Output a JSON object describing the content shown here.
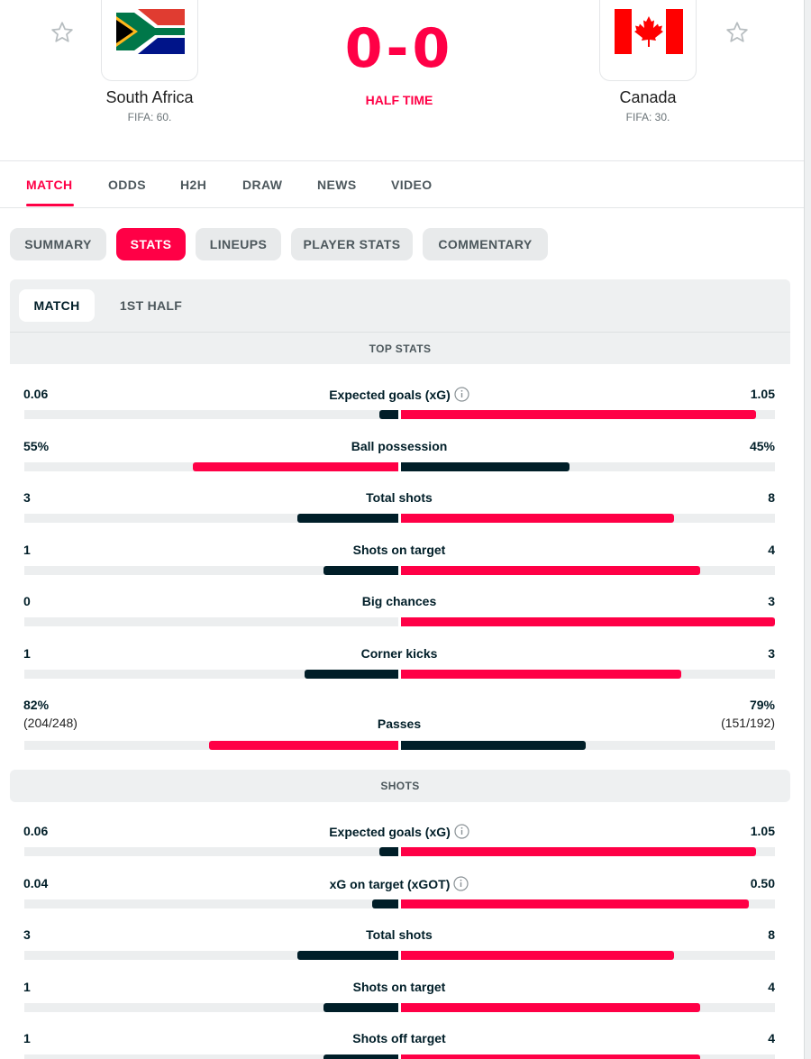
{
  "header": {
    "home": {
      "name": "South Africa",
      "rank": "FIFA: 60."
    },
    "away": {
      "name": "Canada",
      "rank": "FIFA: 30."
    },
    "score": "0-0",
    "status": "HALF TIME"
  },
  "main_tabs": [
    "MATCH",
    "ODDS",
    "H2H",
    "DRAW",
    "NEWS",
    "VIDEO"
  ],
  "sub_tabs": [
    "SUMMARY",
    "STATS",
    "LINEUPS",
    "PLAYER STATS",
    "COMMENTARY"
  ],
  "periods": [
    "MATCH",
    "1ST HALF"
  ],
  "sections": {
    "top_stats": "TOP STATS",
    "shots": "SHOTS"
  },
  "colors": {
    "accent": "#ff0046",
    "dark": "#001e28",
    "track": "#eceeef"
  },
  "top_stats": [
    {
      "label": "Expected goals (xG)",
      "home": "0.06",
      "away": "1.05",
      "home_share": 0.05,
      "away_share": 0.95,
      "info": true
    },
    {
      "label": "Ball possession",
      "home": "55%",
      "away": "45%",
      "home_share": 0.55,
      "away_share": 0.45
    },
    {
      "label": "Total shots",
      "home": "3",
      "away": "8",
      "home_share": 0.27,
      "away_share": 0.73
    },
    {
      "label": "Shots on target",
      "home": "1",
      "away": "4",
      "home_share": 0.2,
      "away_share": 0.8
    },
    {
      "label": "Big chances",
      "home": "0",
      "away": "3",
      "home_share": 0.0,
      "away_share": 1.0
    },
    {
      "label": "Corner kicks",
      "home": "1",
      "away": "3",
      "home_share": 0.25,
      "away_share": 0.75
    },
    {
      "label": "Passes",
      "home": "82%",
      "away": "79%",
      "home_sub": "(204/248)",
      "away_sub": "(151/192)",
      "home_share": 0.5,
      "away_share": 0.5
    }
  ],
  "shots": [
    {
      "label": "Expected goals (xG)",
      "home": "0.06",
      "away": "1.05",
      "home_share": 0.05,
      "away_share": 0.95,
      "info": true
    },
    {
      "label": "xG on target (xGOT)",
      "home": "0.04",
      "away": "0.50",
      "home_share": 0.07,
      "away_share": 0.93,
      "info": true
    },
    {
      "label": "Total shots",
      "home": "3",
      "away": "8",
      "home_share": 0.27,
      "away_share": 0.73
    },
    {
      "label": "Shots on target",
      "home": "1",
      "away": "4",
      "home_share": 0.2,
      "away_share": 0.8
    },
    {
      "label": "Shots off target",
      "home": "1",
      "away": "4",
      "home_share": 0.2,
      "away_share": 0.8
    }
  ]
}
